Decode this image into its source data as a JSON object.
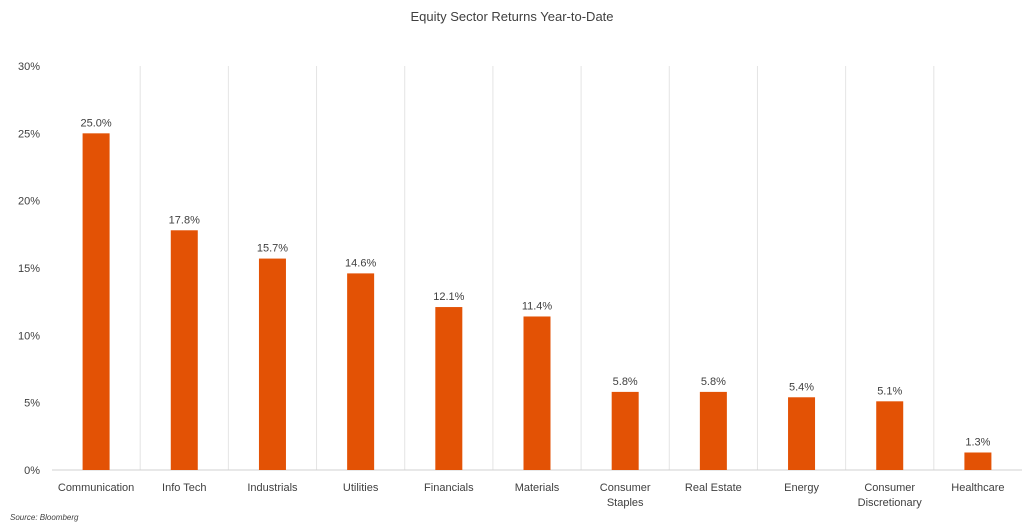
{
  "source_note": "Source: Bloomberg",
  "chart_data": {
    "type": "bar",
    "title": "Equity Sector Returns Year-to-Date",
    "xlabel": "",
    "ylabel": "",
    "categories": [
      [
        "Communication"
      ],
      [
        "Info Tech"
      ],
      [
        "Industrials"
      ],
      [
        "Utilities"
      ],
      [
        "Financials"
      ],
      [
        "Materials"
      ],
      [
        "Consumer",
        "Staples"
      ],
      [
        "Real Estate"
      ],
      [
        "Energy"
      ],
      [
        "Consumer",
        "Discretionary"
      ],
      [
        "Healthcare"
      ]
    ],
    "values": [
      25.0,
      17.8,
      15.7,
      14.6,
      12.1,
      11.4,
      5.8,
      5.8,
      5.4,
      5.1,
      1.3
    ],
    "data_labels": [
      "25.0%",
      "17.8%",
      "15.7%",
      "14.6%",
      "12.1%",
      "11.4%",
      "5.8%",
      "5.8%",
      "5.4%",
      "5.1%",
      "1.3%"
    ],
    "ylim": [
      0,
      30
    ],
    "yticks": [
      0,
      5,
      10,
      15,
      20,
      25,
      30
    ],
    "ytick_labels": [
      "0%",
      "5%",
      "10%",
      "15%",
      "20%",
      "25%",
      "30%"
    ],
    "bar_color": "#E35205",
    "grid": "vertical-category-separators",
    "legend": "none"
  }
}
